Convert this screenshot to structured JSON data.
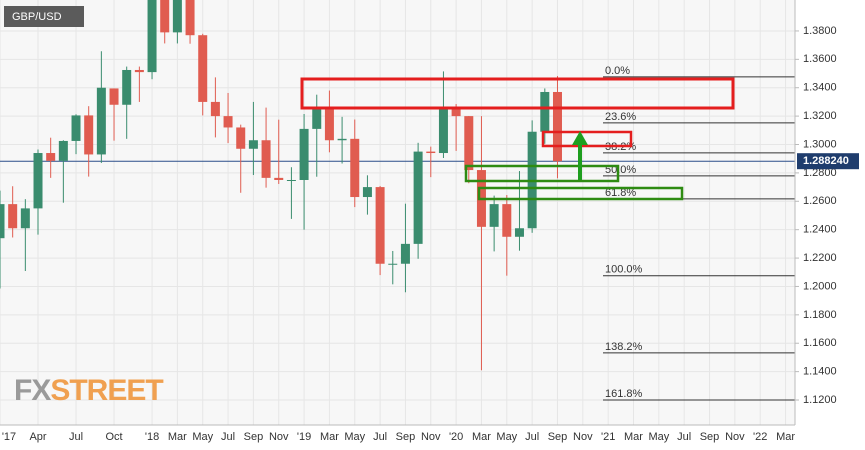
{
  "chart_data": {
    "type": "candlestick",
    "title": "GBP/USD",
    "watermark": [
      "FX",
      "STREET"
    ],
    "categories": [
      "'17",
      null,
      null,
      "Apr",
      null,
      null,
      "Jul",
      null,
      null,
      "Oct",
      null,
      null,
      "'18",
      null,
      "Mar",
      null,
      "May",
      null,
      "Jul",
      null,
      "Sep",
      null,
      "Nov",
      null,
      "'19",
      null,
      "Mar",
      null,
      "May",
      null,
      "Jul",
      null,
      "Sep",
      null,
      "Nov",
      null,
      "'20",
      null,
      "Mar",
      null,
      "May",
      null,
      "Jul",
      null,
      "Sep",
      null,
      "Nov",
      null,
      "'21",
      null,
      "Mar",
      null,
      "May",
      null,
      "Jul",
      null,
      "Sep",
      null,
      "Nov",
      null,
      "'22",
      null,
      "Mar"
    ],
    "open": [
      1.234,
      1.258,
      1.241,
      1.255,
      1.294,
      1.2885,
      1.3025,
      1.3205,
      1.293,
      1.3395,
      1.328,
      1.3525,
      1.351,
      1.419,
      1.379,
      1.402,
      1.377,
      1.33,
      1.32,
      1.312,
      1.297,
      1.303,
      1.2765,
      1.275,
      1.275,
      1.311,
      1.326,
      1.303,
      1.304,
      1.263,
      1.27,
      1.216,
      1.216,
      1.23,
      1.295,
      1.294,
      1.325,
      1.32,
      1.282,
      1.242,
      1.258,
      1.235,
      1.241,
      1.309,
      1.337,
      null,
      null,
      null,
      null,
      null,
      null,
      null,
      null,
      null,
      null,
      null,
      null,
      null,
      null,
      null,
      null,
      null,
      null
    ],
    "high": [
      1.2675,
      1.2706,
      1.2615,
      1.2965,
      1.3048,
      1.303,
      1.3213,
      1.327,
      1.3657,
      1.3395,
      1.3549,
      1.3549,
      1.4345,
      1.42,
      1.4245,
      1.4377,
      1.378,
      1.3473,
      1.3363,
      1.314,
      1.33,
      1.326,
      1.3175,
      1.284,
      1.3215,
      1.3351,
      1.338,
      1.3195,
      1.3176,
      1.2783,
      1.2708,
      1.225,
      1.2583,
      1.3012,
      1.2985,
      1.3515,
      1.3285,
      1.3201,
      1.32,
      1.264,
      1.2644,
      1.2813,
      1.317,
      1.3395,
      1.3482,
      null,
      null,
      null,
      null,
      null,
      null,
      null,
      null,
      null,
      null,
      null,
      null,
      null,
      null,
      null,
      null,
      null,
      null
    ],
    "low": [
      1.1986,
      1.2345,
      1.2109,
      1.2365,
      1.2765,
      1.259,
      1.2932,
      1.2774,
      1.287,
      1.3027,
      1.304,
      1.33,
      1.346,
      1.3712,
      1.3712,
      1.371,
      1.3205,
      1.305,
      1.301,
      1.266,
      1.2785,
      1.2696,
      1.2722,
      1.2476,
      1.24,
      1.2773,
      1.2945,
      1.2866,
      1.2559,
      1.2506,
      1.208,
      1.2015,
      1.1959,
      1.2195,
      1.277,
      1.2905,
      1.2955,
      1.2727,
      1.141,
      1.2247,
      1.2076,
      1.2252,
      1.2378,
      1.3005,
      1.2762,
      null,
      null,
      null,
      null,
      null,
      null,
      null,
      null,
      null,
      null,
      null,
      null,
      null,
      null,
      null,
      null,
      null,
      null
    ],
    "close": [
      1.258,
      1.241,
      1.255,
      1.294,
      1.2885,
      1.3025,
      1.3205,
      1.293,
      1.34,
      1.328,
      1.3525,
      1.351,
      1.419,
      1.379,
      1.402,
      1.377,
      1.33,
      1.32,
      1.312,
      1.297,
      1.303,
      1.2765,
      1.275,
      1.275,
      1.311,
      1.326,
      1.303,
      1.304,
      1.263,
      1.27,
      1.216,
      1.216,
      1.23,
      1.295,
      1.294,
      1.325,
      1.32,
      1.282,
      1.242,
      1.258,
      1.235,
      1.241,
      1.309,
      1.337,
      1.2882,
      null,
      null,
      null,
      null,
      null,
      null,
      null,
      null,
      null,
      null,
      null,
      null,
      null,
      null,
      null,
      null,
      null,
      null
    ],
    "up_color": "#3a8c6e",
    "down_color": "#e05c50",
    "ylim": [
      1.1024,
      1.4018
    ],
    "yticks": [
      {
        "value": 1.12,
        "label": "1.1200"
      },
      {
        "value": 1.14,
        "label": "1.1400"
      },
      {
        "value": 1.16,
        "label": "1.1600"
      },
      {
        "value": 1.18,
        "label": "1.1800"
      },
      {
        "value": 1.2,
        "label": "1.2000"
      },
      {
        "value": 1.22,
        "label": "1.2200"
      },
      {
        "value": 1.24,
        "label": "1.2400"
      },
      {
        "value": 1.26,
        "label": "1.2600"
      },
      {
        "value": 1.28,
        "label": "1.2800"
      },
      {
        "value": 1.3,
        "label": "1.3000"
      },
      {
        "value": 1.32,
        "label": "1.3200"
      },
      {
        "value": 1.34,
        "label": "1.3400"
      },
      {
        "value": 1.36,
        "label": "1.3600"
      },
      {
        "value": 1.38,
        "label": "1.3800"
      }
    ],
    "grid": true,
    "last_price": {
      "value": 1.28824,
      "label": "1.288240"
    },
    "fib_levels": [
      {
        "value": 1.3476,
        "label": "0.0%"
      },
      {
        "value": 1.3152,
        "label": "23.6%"
      },
      {
        "value": 1.2941,
        "label": "38.2%"
      },
      {
        "value": 1.2779,
        "label": "50.0%"
      },
      {
        "value": 1.2617,
        "label": "61.8%"
      },
      {
        "value": 1.2075,
        "label": "100.0%"
      },
      {
        "value": 1.1532,
        "label": "138.2%"
      },
      {
        "value": 1.12,
        "label": "161.8%"
      }
    ]
  }
}
